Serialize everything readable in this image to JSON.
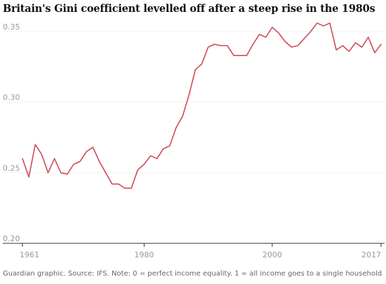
{
  "title": "Britain's Gini coefficient levelled off after a steep rise in the 1980s",
  "footer": "Guardian graphic. Source: IFS. Note: 0 = perfect income equality. 1 = all income goes to a single household",
  "colors": {
    "series": "#d04b55",
    "grid": "#dcdcdc",
    "axis": "#333333",
    "tick_text": "#999999"
  },
  "chart_data": {
    "type": "line",
    "title": "Britain's Gini coefficient levelled off after a steep rise in the 1980s",
    "xlabel": "",
    "ylabel": "",
    "xlim": [
      1961,
      2017
    ],
    "ylim": [
      0.2,
      0.35
    ],
    "x_ticks": [
      1961,
      1980,
      2000,
      2017
    ],
    "y_ticks": [
      0.2,
      0.25,
      0.3,
      0.35
    ],
    "grid": true,
    "legend": "none",
    "series": [
      {
        "x": [
          1961,
          1962,
          1963,
          1964,
          1965,
          1966,
          1967,
          1968,
          1969,
          1970,
          1971,
          1972,
          1973,
          1974,
          1975,
          1976,
          1977,
          1978,
          1979,
          1980,
          1981,
          1982,
          1983,
          1984,
          1985,
          1986,
          1987,
          1988,
          1989,
          1990,
          1991,
          1992,
          1993,
          1994,
          1995,
          1996,
          1997,
          1998,
          1999,
          2000,
          2001,
          2002,
          2003,
          2004,
          2005,
          2006,
          2007,
          2008,
          2009,
          2010,
          2011,
          2012,
          2013,
          2014,
          2015,
          2016,
          2017
        ],
        "values": [
          0.26,
          0.247,
          0.27,
          0.263,
          0.25,
          0.26,
          0.25,
          0.249,
          0.256,
          0.258,
          0.265,
          0.268,
          0.258,
          0.25,
          0.242,
          0.242,
          0.239,
          0.239,
          0.252,
          0.256,
          0.262,
          0.26,
          0.267,
          0.269,
          0.282,
          0.29,
          0.305,
          0.323,
          0.327,
          0.339,
          0.341,
          0.34,
          0.34,
          0.333,
          0.333,
          0.333,
          0.341,
          0.348,
          0.346,
          0.353,
          0.349,
          0.343,
          0.339,
          0.34,
          0.345,
          0.35,
          0.356,
          0.354,
          0.356,
          0.337,
          0.34,
          0.336,
          0.342,
          0.339,
          0.346,
          0.335,
          0.341
        ]
      }
    ]
  }
}
